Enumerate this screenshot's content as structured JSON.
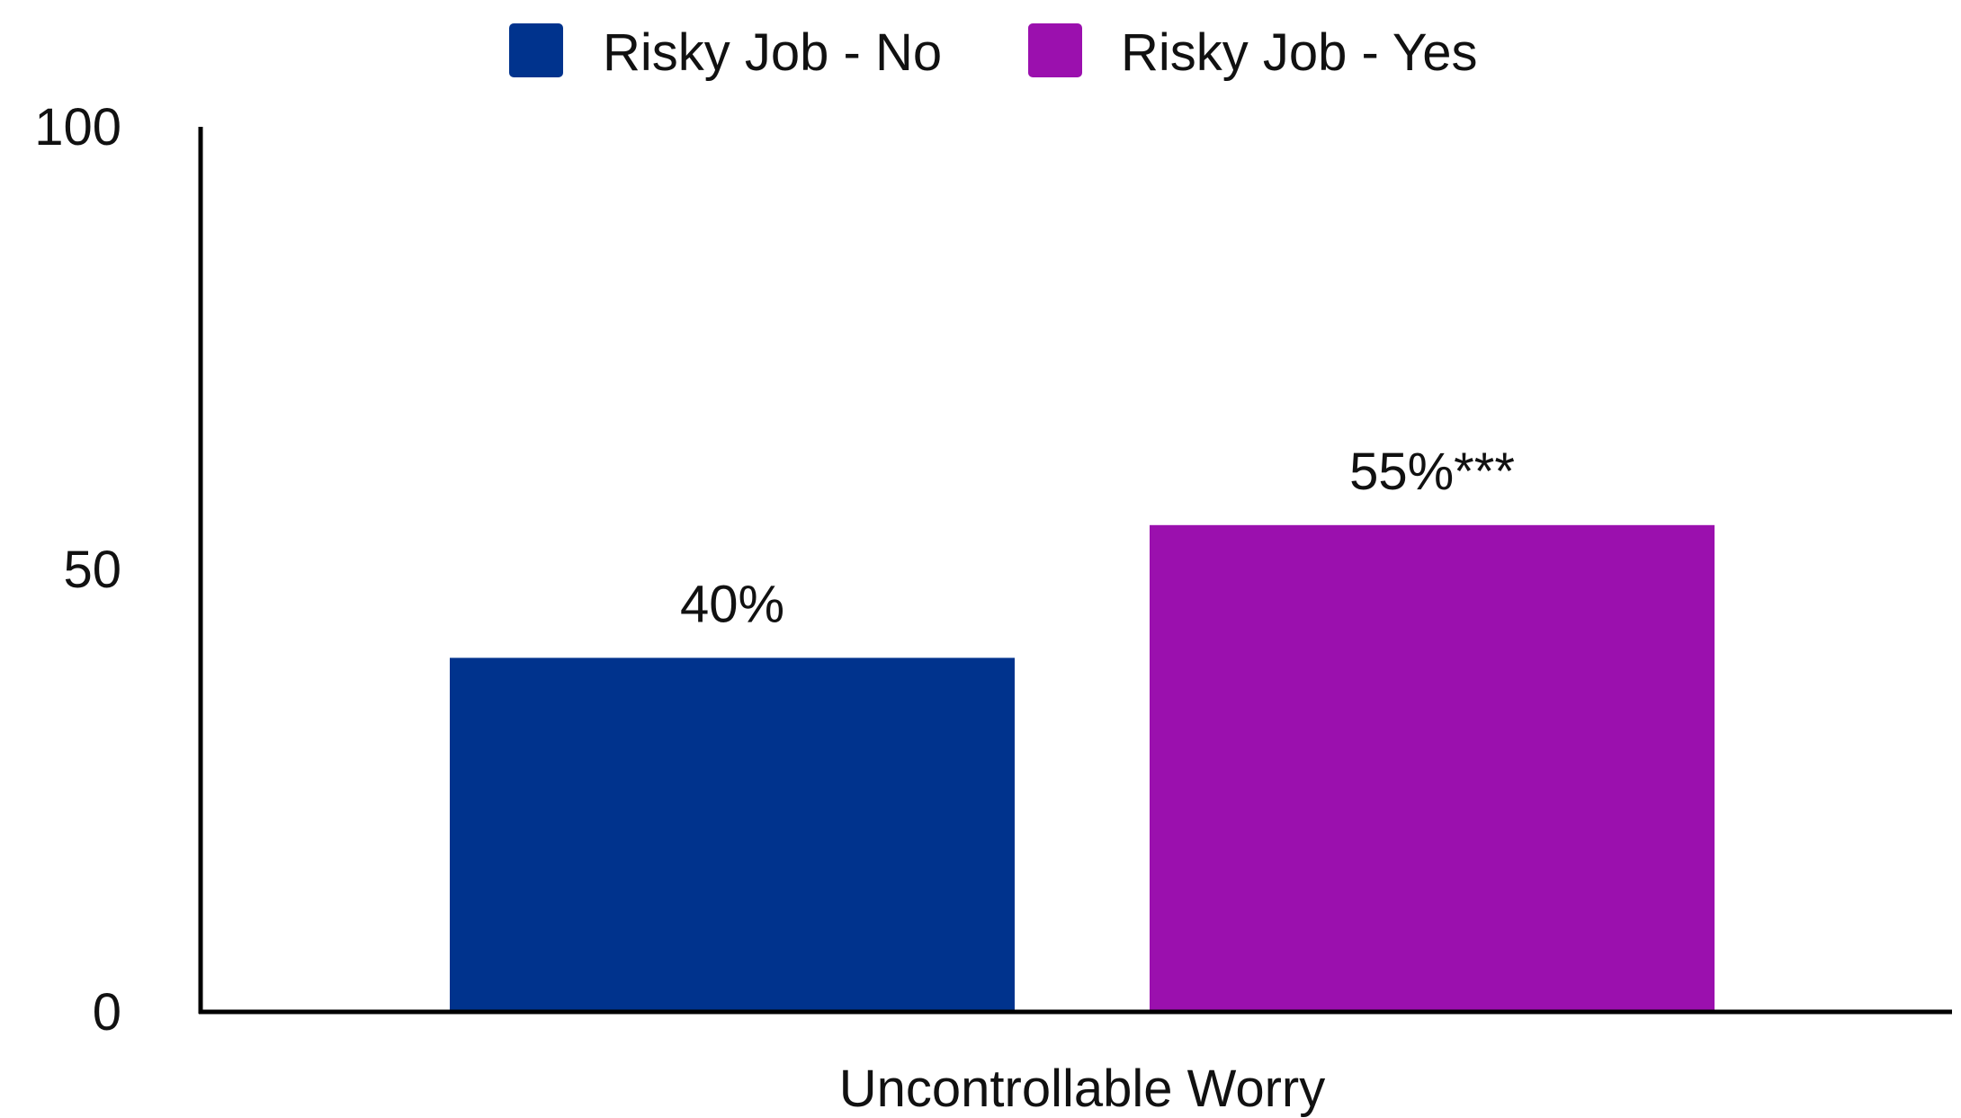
{
  "chart_data": {
    "type": "bar",
    "categories": [
      "Uncontrollable Worry"
    ],
    "series": [
      {
        "name": "Risky Job - No",
        "values": [
          40
        ],
        "color": "#00338D",
        "labels": [
          "40%"
        ]
      },
      {
        "name": "Risky Job - Yes",
        "values": [
          55
        ],
        "color": "#9B10AE",
        "labels": [
          "55%***"
        ]
      }
    ],
    "ylim": [
      0,
      100
    ],
    "yticks": [
      "0",
      "50",
      "100"
    ],
    "ytick_values": [
      0,
      50,
      100
    ],
    "legend_position": "top-center",
    "grid": false,
    "title": "",
    "xlabel": "",
    "ylabel": ""
  }
}
